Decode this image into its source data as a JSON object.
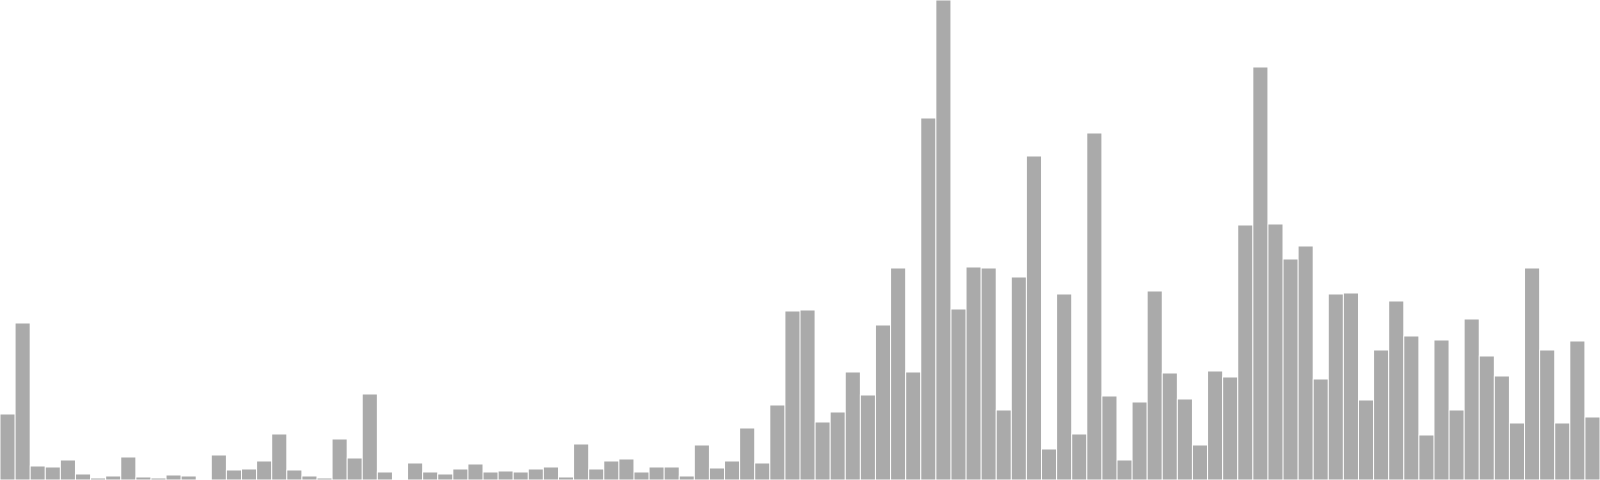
{
  "chart_data": {
    "type": "bar",
    "title": "",
    "xlabel": "",
    "ylabel": "",
    "ylim": [
      0,
      480
    ],
    "grid": false,
    "legend": "none",
    "bar_color": "#aaaaaa",
    "bar_edge_color": "#ffffff",
    "background": "#ffffff",
    "values": [
      66,
      157,
      14,
      13,
      20,
      6,
      2,
      4,
      23,
      3,
      2,
      5,
      4,
      0,
      25,
      10,
      11,
      19,
      46,
      10,
      4,
      2,
      41,
      22,
      86,
      8,
      0,
      17,
      8,
      6,
      11,
      16,
      8,
      9,
      8,
      11,
      13,
      3,
      36,
      11,
      19,
      21,
      8,
      13,
      13,
      4,
      35,
      12,
      19,
      52,
      17,
      75,
      169,
      170,
      58,
      68,
      108,
      85,
      155,
      212,
      108,
      362,
      480,
      171,
      213,
      212,
      70,
      203,
      324,
      31,
      186,
      46,
      347,
      84,
      20,
      78,
      189,
      107,
      81,
      35,
      109,
      103,
      255,
      413,
      256,
      221,
      234,
      101,
      186,
      187,
      80,
      130,
      179,
      144,
      45,
      140,
      70,
      161,
      124,
      104,
      57,
      212,
      130,
      57,
      139,
      63
    ]
  }
}
